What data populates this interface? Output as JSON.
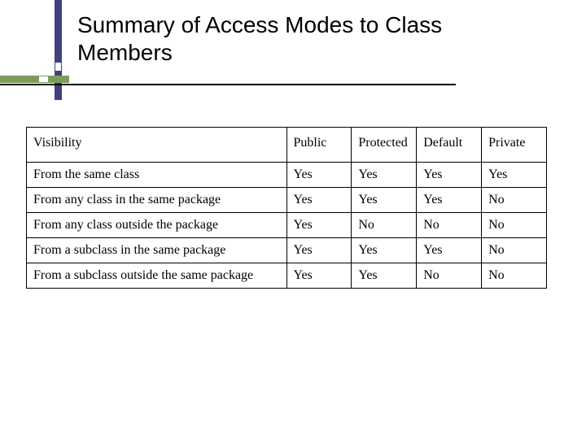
{
  "title": "Summary of Access Modes to Class Members",
  "accent": {
    "horizontal_color": "#7d9c5a",
    "vertical_color": "#404080",
    "underline_color": "#000000"
  },
  "table": {
    "type": "table",
    "font_family": "Times New Roman",
    "font_size": 16,
    "border_color": "#000000",
    "text_color": "#000000",
    "background_color": "#ffffff",
    "columns": [
      {
        "key": "visibility",
        "label": "Visibility",
        "width_pct": 50,
        "align": "left"
      },
      {
        "key": "public",
        "label": "Public",
        "width_pct": 12.5,
        "align": "left"
      },
      {
        "key": "protected",
        "label": "Protected",
        "width_pct": 12.5,
        "align": "left"
      },
      {
        "key": "default",
        "label": "Default",
        "width_pct": 12.5,
        "align": "left"
      },
      {
        "key": "private",
        "label": "Private",
        "width_pct": 12.5,
        "align": "left"
      }
    ],
    "rows": [
      [
        "From the same class",
        "Yes",
        "Yes",
        "Yes",
        "Yes"
      ],
      [
        "From any class in the same package",
        "Yes",
        "Yes",
        "Yes",
        "No"
      ],
      [
        "From any class outside the package",
        "Yes",
        "No",
        "No",
        "No"
      ],
      [
        "From a subclass in the same package",
        "Yes",
        "Yes",
        "Yes",
        "No"
      ],
      [
        "From a subclass outside the same package",
        "Yes",
        "Yes",
        "No",
        "No"
      ]
    ]
  }
}
